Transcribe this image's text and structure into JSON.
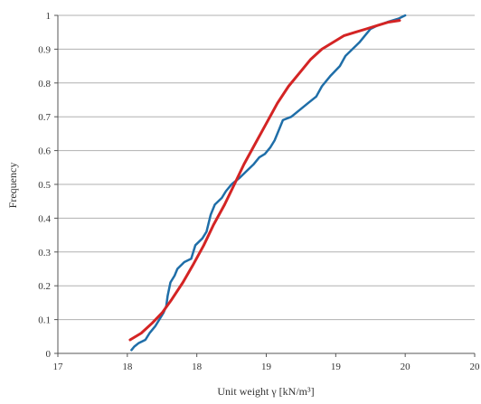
{
  "chart_data": {
    "type": "line",
    "xlabel": "Unit weight γ [kN/m³]",
    "ylabel": "Frequency",
    "xlim": [
      17,
      20
    ],
    "ylim": [
      0,
      1
    ],
    "x_ticks": [
      "17",
      "18",
      "18",
      "19",
      "19",
      "20",
      "20"
    ],
    "x_tick_values": [
      17,
      17.5,
      18,
      18.5,
      19,
      19.5,
      20
    ],
    "y_ticks": [
      "0",
      "0.1",
      "0.2",
      "0.3",
      "0.4",
      "0.5",
      "0.6",
      "0.7",
      "0.8",
      "0.9",
      "1"
    ],
    "y_tick_values": [
      0,
      0.1,
      0.2,
      0.3,
      0.4,
      0.5,
      0.6,
      0.7,
      0.8,
      0.9,
      1
    ],
    "grid": true,
    "series": [
      {
        "color": "#1f6ea8",
        "points": [
          [
            17.53,
            0.01
          ],
          [
            17.55,
            0.02
          ],
          [
            17.58,
            0.03
          ],
          [
            17.63,
            0.04
          ],
          [
            17.66,
            0.06
          ],
          [
            17.7,
            0.08
          ],
          [
            17.73,
            0.1
          ],
          [
            17.76,
            0.12
          ],
          [
            17.78,
            0.14
          ],
          [
            17.79,
            0.17
          ],
          [
            17.81,
            0.21
          ],
          [
            17.84,
            0.23
          ],
          [
            17.86,
            0.25
          ],
          [
            17.91,
            0.27
          ],
          [
            17.96,
            0.28
          ],
          [
            17.99,
            0.32
          ],
          [
            18.04,
            0.34
          ],
          [
            18.07,
            0.36
          ],
          [
            18.1,
            0.41
          ],
          [
            18.13,
            0.44
          ],
          [
            18.18,
            0.46
          ],
          [
            18.21,
            0.48
          ],
          [
            18.25,
            0.5
          ],
          [
            18.31,
            0.52
          ],
          [
            18.36,
            0.54
          ],
          [
            18.41,
            0.56
          ],
          [
            18.45,
            0.58
          ],
          [
            18.49,
            0.59
          ],
          [
            18.53,
            0.61
          ],
          [
            18.56,
            0.63
          ],
          [
            18.59,
            0.66
          ],
          [
            18.62,
            0.69
          ],
          [
            18.68,
            0.7
          ],
          [
            18.74,
            0.72
          ],
          [
            18.8,
            0.74
          ],
          [
            18.86,
            0.76
          ],
          [
            18.9,
            0.79
          ],
          [
            18.96,
            0.82
          ],
          [
            19.03,
            0.85
          ],
          [
            19.07,
            0.88
          ],
          [
            19.12,
            0.9
          ],
          [
            19.17,
            0.92
          ],
          [
            19.21,
            0.94
          ],
          [
            19.25,
            0.96
          ],
          [
            19.3,
            0.97
          ],
          [
            19.37,
            0.98
          ],
          [
            19.45,
            0.99
          ],
          [
            19.5,
            1.0
          ]
        ]
      },
      {
        "color": "#d42424",
        "points": [
          [
            17.52,
            0.04
          ],
          [
            17.6,
            0.06
          ],
          [
            17.68,
            0.09
          ],
          [
            17.75,
            0.12
          ],
          [
            17.82,
            0.16
          ],
          [
            17.9,
            0.21
          ],
          [
            17.97,
            0.26
          ],
          [
            18.05,
            0.32
          ],
          [
            18.12,
            0.38
          ],
          [
            18.2,
            0.44
          ],
          [
            18.27,
            0.5
          ],
          [
            18.34,
            0.56
          ],
          [
            18.42,
            0.62
          ],
          [
            18.5,
            0.68
          ],
          [
            18.58,
            0.74
          ],
          [
            18.66,
            0.79
          ],
          [
            18.74,
            0.83
          ],
          [
            18.82,
            0.87
          ],
          [
            18.9,
            0.9
          ],
          [
            18.98,
            0.92
          ],
          [
            19.06,
            0.94
          ],
          [
            19.14,
            0.95
          ],
          [
            19.22,
            0.96
          ],
          [
            19.3,
            0.97
          ],
          [
            19.38,
            0.98
          ],
          [
            19.46,
            0.985
          ]
        ]
      }
    ]
  }
}
